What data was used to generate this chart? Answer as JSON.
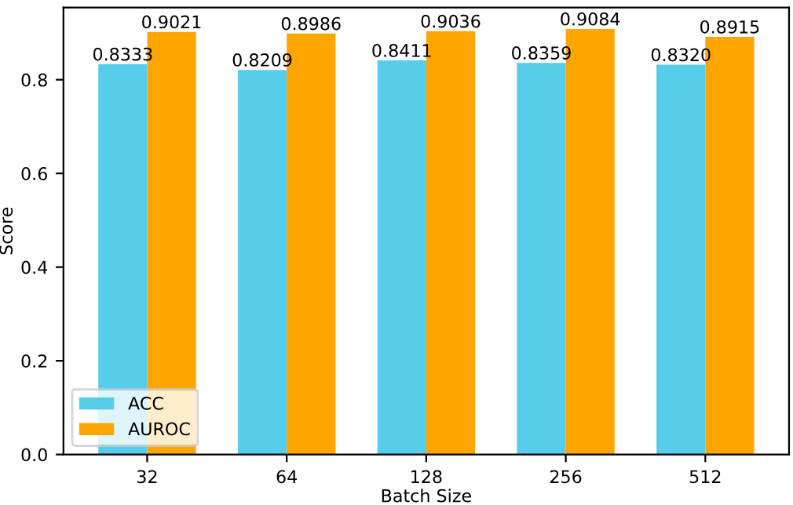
{
  "chart_data": {
    "type": "bar",
    "xlabel": "Batch Size",
    "ylabel": "Score",
    "categories": [
      "32",
      "64",
      "128",
      "256",
      "512"
    ],
    "series": [
      {
        "name": "ACC",
        "color": "#56cdeb",
        "values": [
          0.8333,
          0.8209,
          0.8411,
          0.8359,
          0.832
        ],
        "value_labels": [
          "0.8333",
          "0.8209",
          "0.8411",
          "0.8359",
          "0.8320"
        ]
      },
      {
        "name": "AUROC",
        "color": "#ffa500",
        "values": [
          0.9021,
          0.8986,
          0.9036,
          0.9084,
          0.8915
        ],
        "value_labels": [
          "0.9021",
          "0.8986",
          "0.9036",
          "0.9084",
          "0.8915"
        ]
      }
    ],
    "ylim": [
      0,
      0.954
    ],
    "yticks": [
      {
        "value": 0,
        "label": "0.0"
      },
      {
        "value": 0.2,
        "label": "0.2"
      },
      {
        "value": 0.4,
        "label": "0.4"
      },
      {
        "value": 0.6,
        "label": "0.6"
      },
      {
        "value": 0.8,
        "label": "0.8"
      }
    ],
    "legend": "bottom left",
    "grid": false
  }
}
